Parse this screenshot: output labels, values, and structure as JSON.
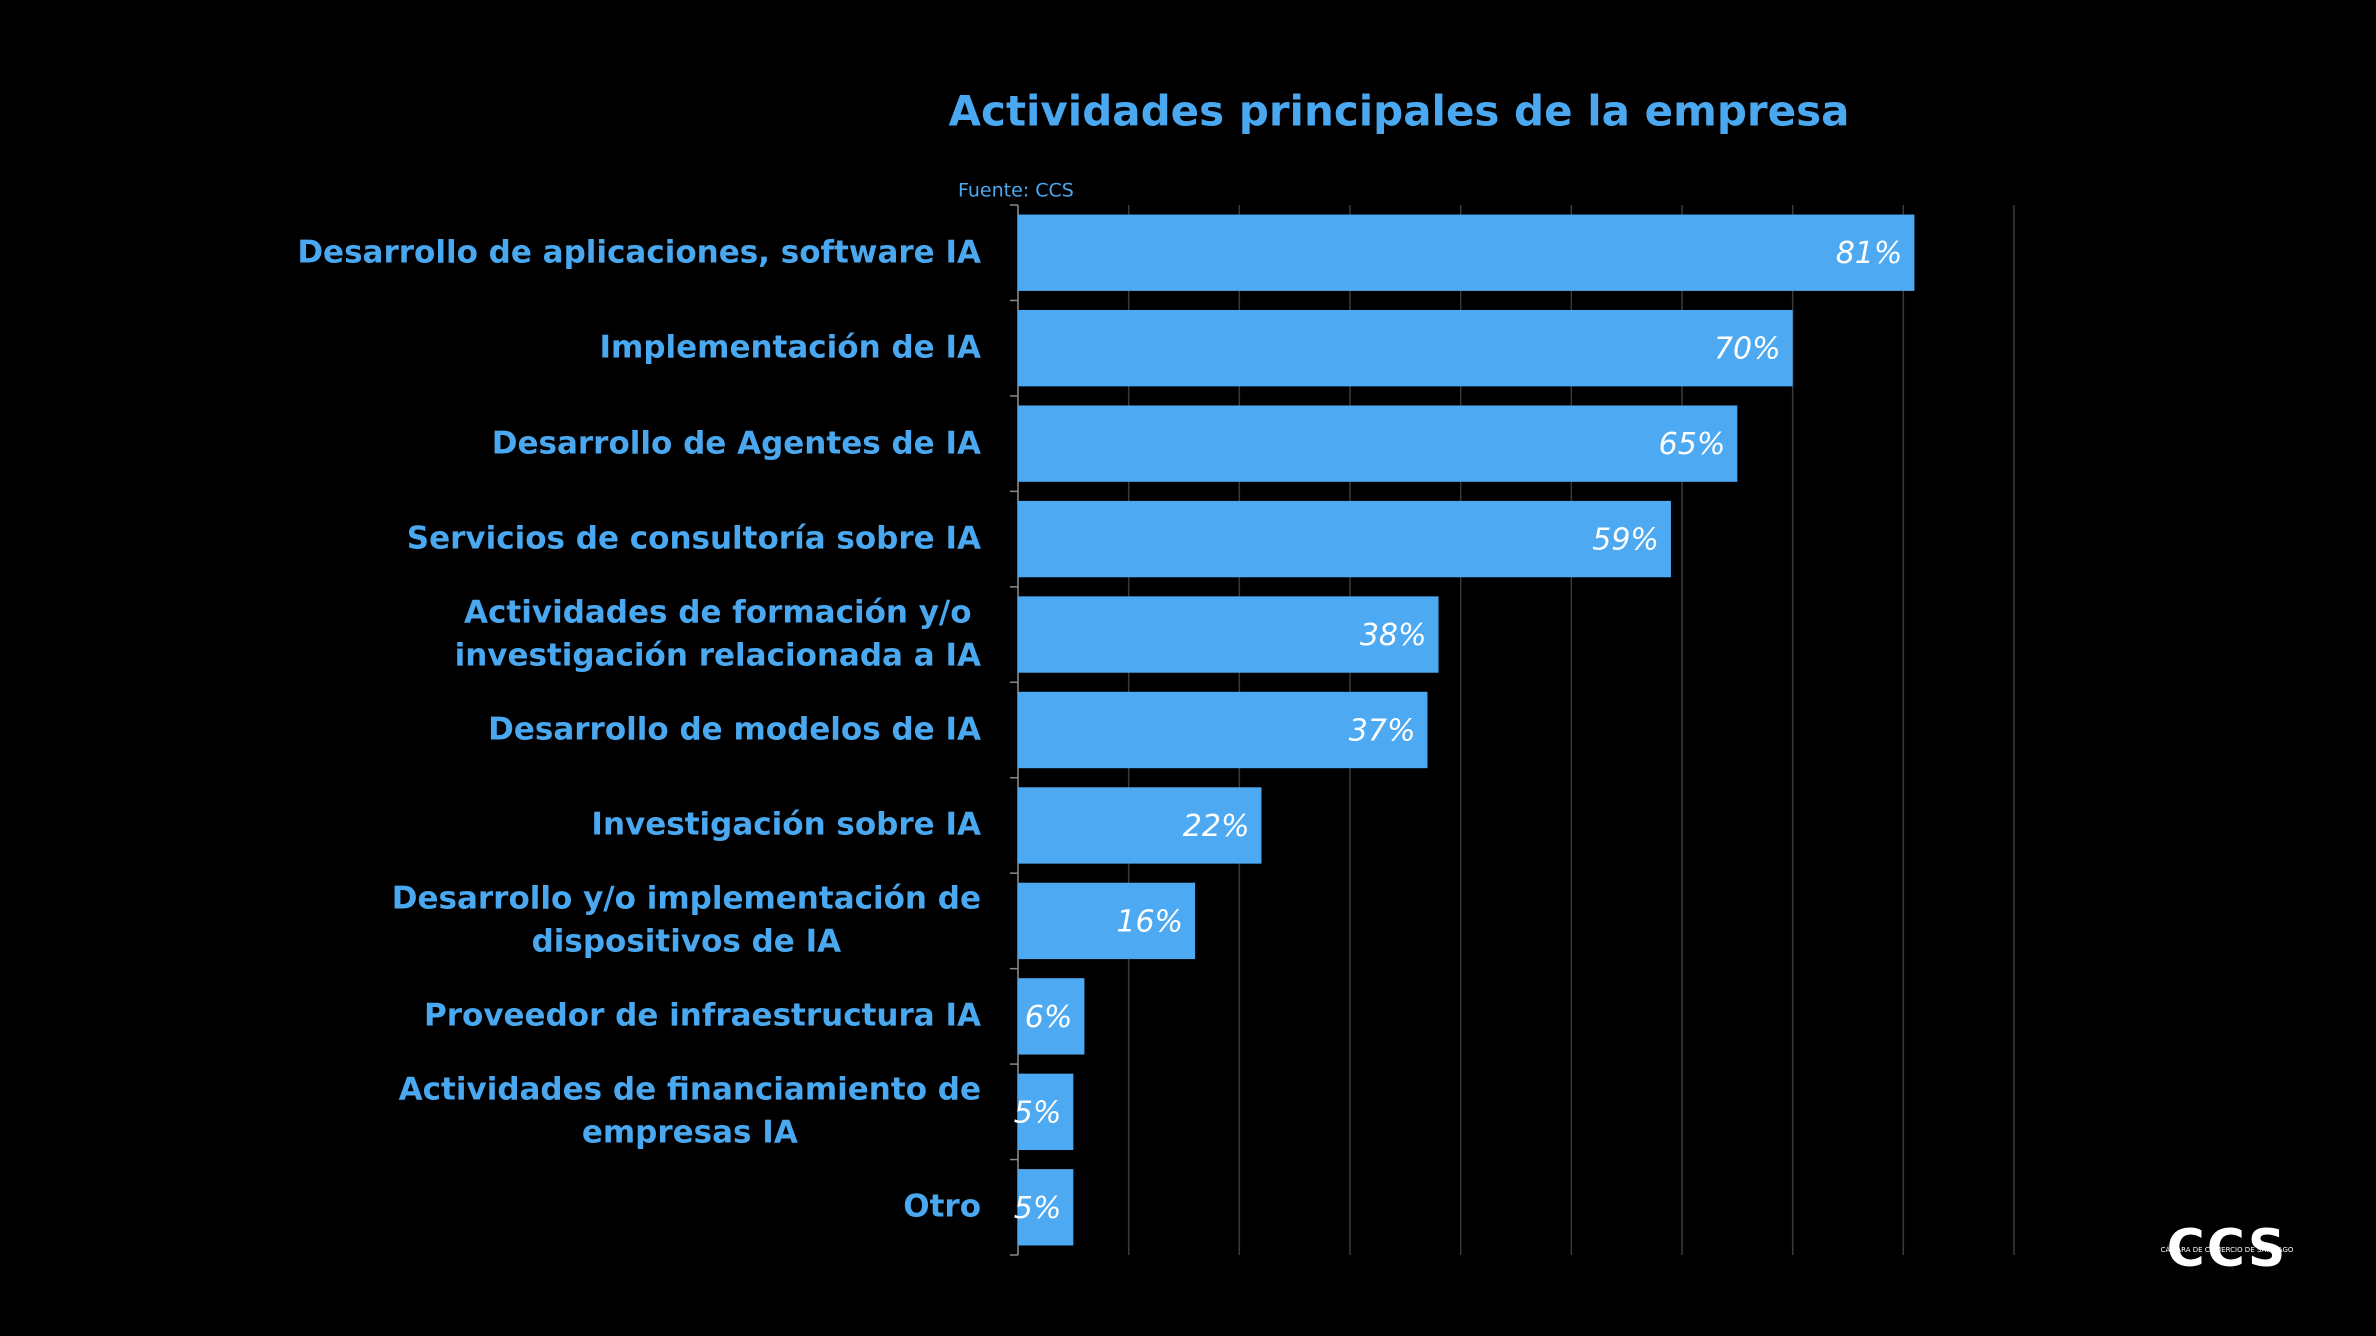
{
  "chart_data": {
    "type": "bar",
    "orientation": "horizontal",
    "title": "Actividades principales de la empresa",
    "source": "Fuente: CCS",
    "categories": [
      "Desarrollo de aplicaciones, software IA",
      "Implementación de IA",
      "Desarrollo de Agentes de IA",
      "Servicios de consultoría sobre IA",
      "Actividades de formación y/o\ninvestigación relacionada a IA",
      "Desarrollo de modelos de IA",
      "Investigación sobre IA",
      "Desarrollo y/o implementación de\ndispositivos de IA",
      "Proveedor de infraestructura IA",
      "Actividades de financiamiento de\nempresas IA",
      "Otro"
    ],
    "values": [
      81,
      70,
      65,
      59,
      38,
      37,
      22,
      16,
      6,
      5,
      5
    ],
    "value_labels": [
      "81%",
      "70%",
      "65%",
      "59%",
      "38%",
      "37%",
      "22%",
      "16%",
      "6%",
      "5%",
      "5%"
    ],
    "color": "#4da9f1",
    "xlim": [
      0,
      90
    ],
    "xticks": [
      0,
      10,
      20,
      30,
      40,
      50,
      60,
      70,
      80,
      90
    ],
    "grid": true,
    "logo": {
      "name": "CCS",
      "subtitle": "CÁMARA DE COMERCIO DE SANTIAGO"
    }
  }
}
